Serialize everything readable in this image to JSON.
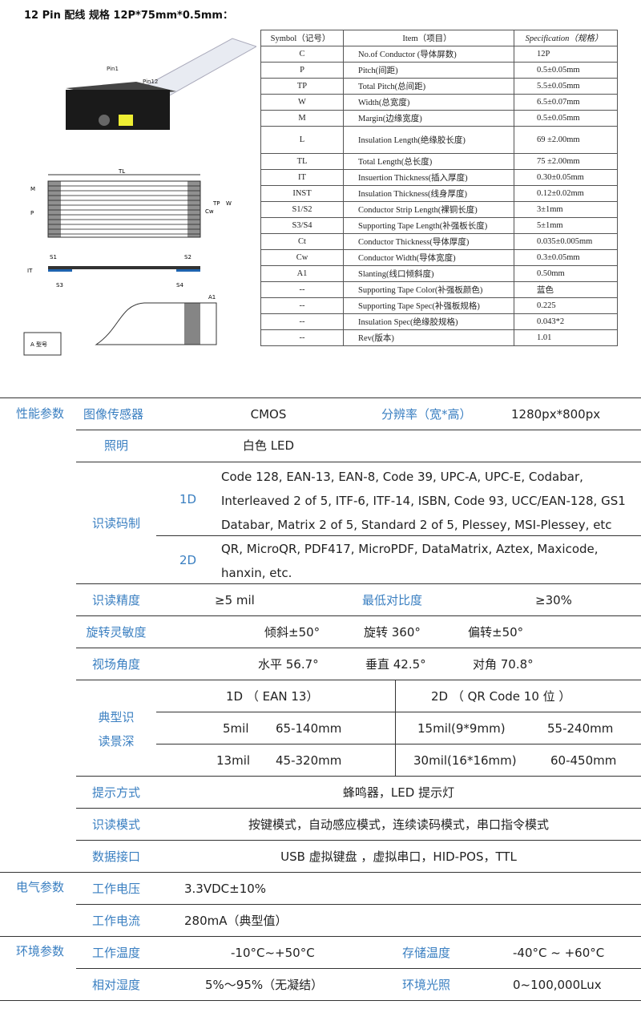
{
  "title": "12 Pin  配线  规格 12P*75mm*0.5mm：",
  "figure": {
    "pin1": "Pin1",
    "pin12": "Pin12",
    "labels": [
      "TL",
      "M",
      "P",
      "TP",
      "Cw",
      "W",
      "S1",
      "S2",
      "IT",
      "S3",
      "S4",
      "A1"
    ],
    "stamp": "A 型号"
  },
  "spec_table": {
    "headers": [
      "Symbol（记号）",
      "Item（项目）",
      "Specification（规格）"
    ],
    "rows": [
      [
        "C",
        "No.of Conductor (导体屏数)",
        "12P"
      ],
      [
        "P",
        "Pitch(间距)",
        "0.5±0.05mm"
      ],
      [
        "TP",
        "Total Pitch(总间距)",
        "5.5±0.05mm"
      ],
      [
        "W",
        "Width(总宽度)",
        "6.5±0.07mm"
      ],
      [
        "M",
        "Margin(边缘宽度)",
        "0.5±0.05mm"
      ],
      [
        "L",
        "Insulation Length(绝缘胶长度)",
        "69 ±2.00mm"
      ],
      [
        "TL",
        "Total Length(总长度)",
        "75 ±2.00mm"
      ],
      [
        "IT",
        "Insuertion Thickness(插入厚度)",
        "0.30±0.05mm"
      ],
      [
        "INST",
        "Insulation Thickness(线身厚度)",
        "0.12±0.02mm"
      ],
      [
        "S1/S2",
        "Conductor Strip Length(裸铜长度)",
        "3±1mm"
      ],
      [
        "S3/S4",
        "Supporting Tape Length(补强板长度)",
        "5±1mm"
      ],
      [
        "Ct",
        "Conductor Thickness(导体厚度)",
        "0.035±0.005mm"
      ],
      [
        "Cw",
        "Conductor Width(导体宽度)",
        "0.3±0.05mm"
      ],
      [
        "A1",
        "Slanting(线口倾斜度)",
        "0.50mm"
      ],
      [
        "--",
        "Supporting Tape Color(补强板颜色)",
        "蓝色"
      ],
      [
        "--",
        "Supporting Tape Spec(补强板规格)",
        "0.225"
      ],
      [
        "--",
        "Insulation Spec(绝缘胶规格)",
        "0.043*2"
      ],
      [
        "--",
        "Rev(版本)",
        "1.01"
      ]
    ]
  },
  "params": {
    "perf": "性能参数",
    "sensor": "图像传感器",
    "sensor_val": "CMOS",
    "res": "分辨率（宽*高）",
    "res_val": "1280px*800px",
    "light": "照明",
    "light_val": "白色 LED",
    "sym": "识读码制",
    "d1": "1D",
    "d1_val": "Code 128, EAN-13, EAN-8, Code 39, UPC-A, UPC-E, Codabar, Interleaved 2 of 5, ITF-6, ITF-14, ISBN, Code 93, UCC/EAN-128, GS1 Databar, Matrix 2 of 5, Standard 2 of 5, Plessey, MSI-Plessey, etc",
    "d2": "2D",
    "d2_val": "QR, MicroQR, PDF417, MicroPDF, DataMatrix, Aztex, Maxicode, hanxin, etc.",
    "prec": "识读精度",
    "prec_val": "≥5 mil",
    "contrast": "最低对比度",
    "contrast_val": "≥30%",
    "rot": "旋转灵敏度",
    "tilt": "倾斜±50°",
    "spin": "旋转 360°",
    "skew": "偏转±50°",
    "fov": "视场角度",
    "h": "水平 56.7°",
    "v": "垂直 42.5°",
    "diag": "对角 70.8°",
    "dof1": "典型识",
    "dof2": "读景深",
    "dof_1d": "1D  （ EAN 13）",
    "dof_2d": "2D  （ QR Code  10 位 ）",
    "r1a": "5mil",
    "r1b": "65-140mm",
    "r1c": "15mil(9*9mm)",
    "r1d": "55-240mm",
    "r2a": "13mil",
    "r2b": "45-320mm",
    "r2c": "30mil(16*16mm)",
    "r2d": "60-450mm",
    "hint": "提示方式",
    "hint_val": "蜂鸣器，LED 提示灯",
    "mode": "识读模式",
    "mode_val": "按键模式，自动感应模式，连续读码模式，串口指令模式",
    "iface": "数据接口",
    "iface_val": "USB  虚拟键盘 ，虚拟串口，HID-POS，TTL",
    "elec": "电气参数",
    "volt": "工作电压",
    "volt_val": "3.3VDC±10%",
    "cur": "工作电流",
    "cur_val": "280mA（典型值）",
    "env": "环境参数",
    "wtemp": "工作温度",
    "wtemp_val": "-10°C~+50°C",
    "stemp": "存储温度",
    "stemp_val": "-40°C  ~ +60°C",
    "hum": "相对湿度",
    "hum_val": "5%～95%（无凝结）",
    "amb": "环境光照",
    "amb_val": "0~100,000Lux"
  },
  "colors": {
    "label_blue": "#3a7fc1"
  }
}
